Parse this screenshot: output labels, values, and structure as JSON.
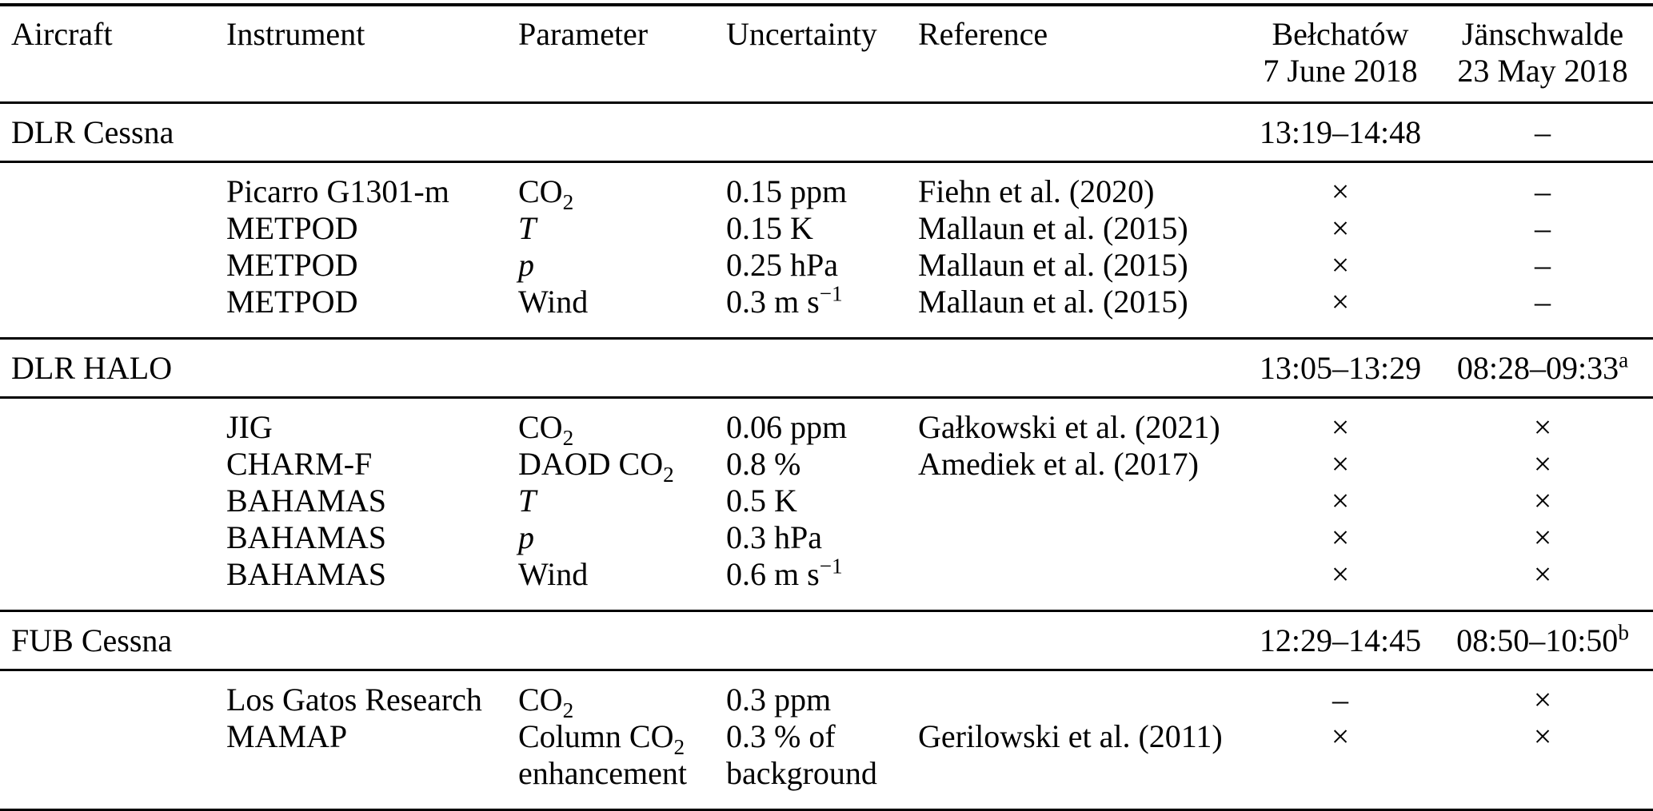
{
  "table": {
    "headers": {
      "aircraft": "Aircraft",
      "instrument": "Instrument",
      "parameter": "Parameter",
      "uncertainty": "Uncertainty",
      "reference": "Reference",
      "site1_name": "Bełchatów",
      "site1_date": "7 June 2018",
      "site2_name": "Jänschwalde",
      "site2_date": "23 May 2018"
    },
    "sections": [
      {
        "aircraft": "DLR Cessna",
        "belchatow": "13:19–14:48",
        "janschwalde": "–",
        "janschwalde_sup": "",
        "rows": [
          {
            "instrument": "Picarro G1301-m",
            "param": "CO",
            "param_sub": "2",
            "uncertainty": "0.15 ppm",
            "reference": "Fiehn et al. (2020)",
            "belchatow": "×",
            "janschwalde": "–"
          },
          {
            "instrument": "METPOD",
            "param": "T",
            "uncertainty": "0.15 K",
            "reference": "Mallaun et al. (2015)",
            "belchatow": "×",
            "janschwalde": "–"
          },
          {
            "instrument": "METPOD",
            "param": "p",
            "uncertainty": "0.25 hPa",
            "reference": "Mallaun et al. (2015)",
            "belchatow": "×",
            "janschwalde": "–"
          },
          {
            "instrument": "METPOD",
            "param": "Wind",
            "uncertainty": "0.3 m s",
            "uncertainty_sup": "−1",
            "reference": "Mallaun et al. (2015)",
            "belchatow": "×",
            "janschwalde": "–"
          }
        ]
      },
      {
        "aircraft": "DLR HALO",
        "belchatow": "13:05–13:29",
        "janschwalde": "08:28–09:33",
        "janschwalde_sup": "a",
        "rows": [
          {
            "instrument": "JIG",
            "param": "CO",
            "param_sub": "2",
            "uncertainty": "0.06 ppm",
            "reference": "Gałkowski et al. (2021)",
            "belchatow": "×",
            "janschwalde": "×"
          },
          {
            "instrument": "CHARM-F",
            "param": "DAOD CO",
            "param_sub": "2",
            "uncertainty": "0.8 %",
            "reference": "Amediek et al. (2017)",
            "belchatow": "×",
            "janschwalde": "×"
          },
          {
            "instrument": "BAHAMAS",
            "param": "T",
            "uncertainty": "0.5 K",
            "reference": "",
            "belchatow": "×",
            "janschwalde": "×"
          },
          {
            "instrument": "BAHAMAS",
            "param": "p",
            "uncertainty": "0.3 hPa",
            "reference": "",
            "belchatow": "×",
            "janschwalde": "×"
          },
          {
            "instrument": "BAHAMAS",
            "param": "Wind",
            "uncertainty": "0.6 m s",
            "uncertainty_sup": "−1",
            "reference": "",
            "belchatow": "×",
            "janschwalde": "×"
          }
        ]
      },
      {
        "aircraft": "FUB Cessna",
        "belchatow": "12:29–14:45",
        "janschwalde": "08:50–10:50",
        "janschwalde_sup": "b",
        "rows": [
          {
            "instrument": "Los Gatos Research",
            "param": "CO",
            "param_sub": "2",
            "uncertainty": "0.3 ppm",
            "reference": "",
            "belchatow": "–",
            "janschwalde": "×"
          },
          {
            "instrument": "MAMAP",
            "param": "Column CO",
            "param_sub": "2",
            "param_line2": "enhancement",
            "uncertainty": "0.3 % of",
            "uncertainty_line2": "background",
            "reference": "Gerilowski et al. (2011)",
            "belchatow": "×",
            "janschwalde": "×"
          }
        ]
      }
    ]
  }
}
